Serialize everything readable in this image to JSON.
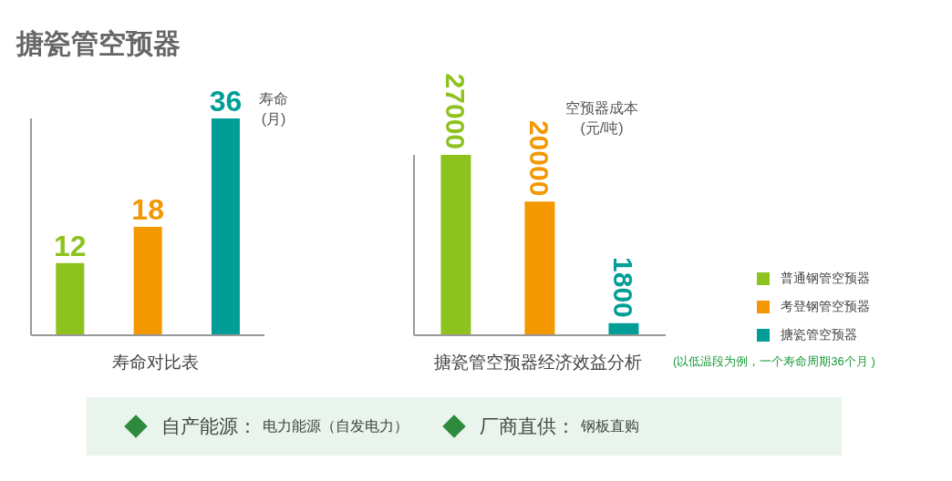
{
  "chart_data": [
    {
      "type": "bar",
      "title": "搪瓷管空预器",
      "xlabel": "寿命对比表",
      "ylabel": "寿命\n(月)",
      "categories": [
        null,
        null,
        null
      ],
      "values": [
        12,
        18,
        36
      ],
      "colors": [
        "#8dc21f",
        "#f39800",
        "#009e96"
      ],
      "data_labels": true
    },
    {
      "type": "bar",
      "xlabel": "搪瓷管空预器经济效益分析",
      "ylabel": "空预器成本\n(元/吨)",
      "categories": [
        null,
        null,
        null
      ],
      "values": [
        27000,
        20000,
        1800
      ],
      "colors": [
        "#8dc21f",
        "#f39800",
        "#009e96"
      ],
      "data_labels": true,
      "annotations": [
        "(以低温段为例，一个寿命周期36个月 )"
      ]
    },
    {
      "type": "other",
      "annotations": [
        "普通钢管空预器",
        "考登钢管空预器",
        "搪瓷管空预器"
      ]
    },
    {
      "type": "other",
      "annotations": [
        "自产能源：",
        "电力能源（自发电力）",
        "厂商直供：",
        "钢板直购"
      ]
    }
  ]
}
